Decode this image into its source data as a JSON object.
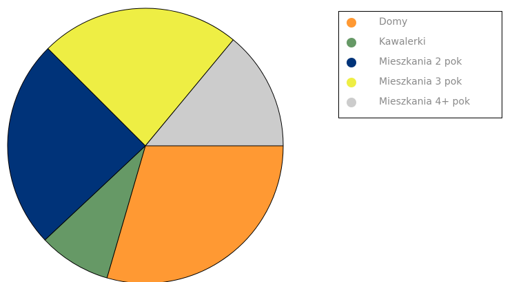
{
  "chart_data": {
    "type": "pie",
    "title": "",
    "legend_position": "top-right",
    "categories": [
      "Domy",
      "Kawalerki",
      "Mieszkania 2 pok",
      "Mieszkania 3 pok",
      "Mieszkania 4+ pok"
    ],
    "values": [
      29.5,
      8.5,
      24.5,
      23.5,
      14
    ],
    "colors": [
      "#ff9933",
      "#669966",
      "#003379",
      "#eeee44",
      "#cccccc"
    ]
  }
}
